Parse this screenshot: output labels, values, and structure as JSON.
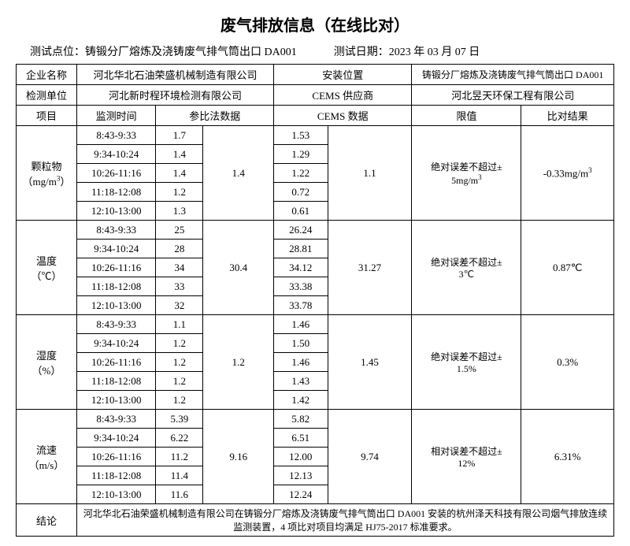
{
  "title": "废气排放信息（在线比对）",
  "subhead": {
    "point_label": "测试点位：",
    "point_value": "铸锻分厂熔炼及浇铸废气排气筒出口 DA001",
    "date_label": "测试日期：",
    "date_value": "2023 年 03 月 07 日"
  },
  "header": {
    "company_label": "企业名称",
    "company_value": "河北华北石油荣盛机械制造有限公司",
    "install_label": "安装位置",
    "install_value": "铸锻分厂熔炼及浇铸废气排气筒出口 DA001",
    "detect_label": "检测单位",
    "detect_value": "河北新时程环境检测有限公司",
    "cems_sup_label": "CEMS 供应商",
    "cems_sup_value": "河北昱天环保工程有限公司"
  },
  "cols": {
    "item": "项目",
    "time": "监测时间",
    "ref": "参比法数据",
    "cems": "CEMS 数据",
    "limit": "限值",
    "result": "比对结果"
  },
  "times": [
    "8:43-9:33",
    "9:34-10:24",
    "10:26-11:16",
    "11:18-12:08",
    "12:10-13:00"
  ],
  "groups": [
    {
      "name_line1": "颗粒物",
      "name_line2": "（mg/m",
      "name_sup": "3",
      "name_line2_end": "）",
      "ref_vals": [
        "1.7",
        "1.4",
        "1.4",
        "1.2",
        "1.3"
      ],
      "ref_avg": "1.4",
      "cems_vals": [
        "1.53",
        "1.29",
        "1.22",
        "0.72",
        "0.61"
      ],
      "cems_avg": "1.1",
      "limit_line1": "绝对误差不超过±",
      "limit_line2": "5mg/m",
      "limit_sup": "3",
      "result": "-0.33mg/m",
      "result_sup": "3"
    },
    {
      "name_line1": "温度",
      "name_line2": "（℃）",
      "ref_vals": [
        "25",
        "28",
        "34",
        "33",
        "32"
      ],
      "ref_avg": "30.4",
      "cems_vals": [
        "26.24",
        "28.81",
        "34.12",
        "33.38",
        "33.78"
      ],
      "cems_avg": "31.27",
      "limit_line1": "绝对误差不超过±",
      "limit_line2": "3℃",
      "result": "0.87℃"
    },
    {
      "name_line1": "湿度",
      "name_line2": "（%）",
      "ref_vals": [
        "1.1",
        "1.2",
        "1.2",
        "1.2",
        "1.2"
      ],
      "ref_avg": "1.2",
      "cems_vals": [
        "1.46",
        "1.50",
        "1.46",
        "1.43",
        "1.42"
      ],
      "cems_avg": "1.45",
      "limit_line1": "绝对误差不超过±",
      "limit_line2": "1.5%",
      "result": "0.3%"
    },
    {
      "name_line1": "流速",
      "name_line2": "（m/s）",
      "ref_vals": [
        "5.39",
        "6.22",
        "11.2",
        "11.4",
        "11.6"
      ],
      "ref_avg": "9.16",
      "cems_vals": [
        "5.82",
        "6.51",
        "12.00",
        "12.13",
        "12.24"
      ],
      "cems_avg": "9.74",
      "limit_line1": "相对误差不超过±",
      "limit_line2": "12%",
      "result": "6.31%"
    }
  ],
  "conclusion": {
    "label": "结论",
    "text": "河北华北石油荣盛机械制造有限公司在铸锻分厂熔炼及浇铸废气排气筒出口 DA001 安装的杭州泽天科技有限公司烟气排放连续监测装置，4 项比对项目均满足 HJ75-2017 标准要求。"
  }
}
